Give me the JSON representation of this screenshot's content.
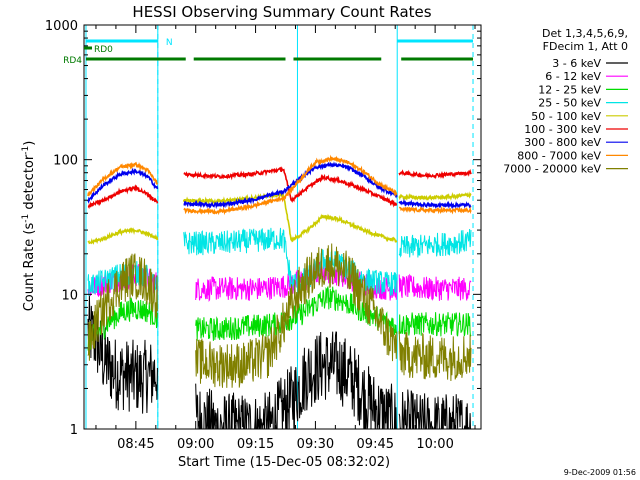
{
  "chart_data": {
    "type": "line",
    "title": "HESSI Observing Summary Count Rates",
    "xlabel": "Start Time (15-Dec-05 08:32:02)",
    "ylabel_prefix": "Count Rate (s",
    "ylabel_sup1": "-1",
    "ylabel_mid": " detector",
    "ylabel_sup2": "-1",
    "ylabel_suffix": ")",
    "y_scale": "log",
    "ylim": [
      1,
      1000
    ],
    "xlim_minutes": [
      0,
      99.5
    ],
    "x_ticks": [
      {
        "m": 13,
        "label": "08:45"
      },
      {
        "m": 28,
        "label": "09:00"
      },
      {
        "m": 43,
        "label": "09:15"
      },
      {
        "m": 58,
        "label": "09:30"
      },
      {
        "m": 73,
        "label": "09:45"
      },
      {
        "m": 88,
        "label": "10:00"
      }
    ],
    "y_ticks": [
      {
        "v": 1,
        "label": "1"
      },
      {
        "v": 10,
        "label": "10"
      },
      {
        "v": 100,
        "label": "100"
      },
      {
        "v": 1000,
        "label": "1000"
      }
    ],
    "night_markers_minutes": [
      0.5,
      18.5,
      53.5,
      78.5
    ],
    "saa_markers_minutes": [
      18.5,
      97.5
    ],
    "flags": [
      {
        "label": "N",
        "color": "#00e5ff",
        "segments": [
          [
            0.5,
            18.5
          ],
          [
            78.5,
            97.5
          ]
        ],
        "level": 1
      }
    ],
    "attenuator_flags": [
      {
        "label": "RD0",
        "color": "#007a00",
        "segments": [
          [
            -6,
            -1
          ]
        ],
        "level": 2
      },
      {
        "label": "RD4",
        "color": "#007a00",
        "segments": [
          [
            0.5,
            25.5
          ],
          [
            27.5,
            50.5
          ],
          [
            52.5,
            74.5
          ],
          [
            79.5,
            97.5
          ]
        ],
        "level": 3
      }
    ],
    "legend_header": [
      "Det 1,3,4,5,6,9,",
      "FDecim 1, Att 0"
    ],
    "series": [
      {
        "name": "3 - 6 keV",
        "color": "#000000",
        "seg1": [
          [
            1,
            5.4
          ],
          [
            3,
            4.6
          ],
          [
            5,
            3.2
          ],
          [
            8,
            2.6
          ],
          [
            11,
            2.5
          ],
          [
            14,
            2.4
          ],
          [
            17,
            2.5
          ],
          [
            18.5,
            2.7
          ]
        ],
        "seg2": [
          [
            28,
            1.2
          ],
          [
            34,
            1.0
          ],
          [
            40,
            1.0
          ],
          [
            46,
            1.0
          ],
          [
            52,
            1.6
          ],
          [
            56,
            2.6
          ],
          [
            60,
            3.0
          ],
          [
            64,
            2.9
          ],
          [
            68,
            2.2
          ],
          [
            72,
            1.5
          ],
          [
            76,
            1.2
          ],
          [
            78.5,
            1.1
          ]
        ],
        "seg3": [
          [
            79,
            1.1
          ],
          [
            84,
            1.0
          ],
          [
            90,
            1.0
          ],
          [
            97,
            1.0
          ]
        ]
      },
      {
        "name": "6 - 12 keV",
        "color": "#ff00ff",
        "seg1": [
          [
            1,
            11
          ],
          [
            5,
            12
          ],
          [
            9,
            13
          ],
          [
            13,
            14
          ],
          [
            16,
            13
          ],
          [
            18.5,
            12
          ]
        ],
        "seg2": [
          [
            28,
            11
          ],
          [
            36,
            11
          ],
          [
            44,
            11
          ],
          [
            50,
            11.5
          ],
          [
            56,
            13
          ],
          [
            60,
            15
          ],
          [
            64,
            14
          ],
          [
            70,
            12
          ],
          [
            76,
            11
          ],
          [
            78.5,
            11
          ]
        ],
        "seg3": [
          [
            79,
            11.5
          ],
          [
            86,
            11
          ],
          [
            92,
            11
          ],
          [
            97,
            11
          ]
        ]
      },
      {
        "name": "12 - 25 keV",
        "color": "#00dd00",
        "seg1": [
          [
            1,
            4.5
          ],
          [
            4,
            5.4
          ],
          [
            7,
            6.6
          ],
          [
            10,
            7.5
          ],
          [
            13,
            7.9
          ],
          [
            16,
            7.5
          ],
          [
            18.5,
            6.7
          ]
        ],
        "seg2": [
          [
            28,
            5.5
          ],
          [
            34,
            5.5
          ],
          [
            42,
            5.8
          ],
          [
            48,
            6.0
          ],
          [
            54,
            7.0
          ],
          [
            58,
            8.5
          ],
          [
            61,
            9.5
          ],
          [
            64,
            9.2
          ],
          [
            68,
            8.0
          ],
          [
            72,
            7.0
          ],
          [
            76,
            6.2
          ],
          [
            78.5,
            5.8
          ]
        ],
        "seg3": [
          [
            79,
            6
          ],
          [
            84,
            6
          ],
          [
            90,
            6
          ],
          [
            97,
            6
          ]
        ]
      },
      {
        "name": "25 - 50 keV",
        "color": "#00e5e5",
        "seg1": [
          [
            1,
            11.5
          ],
          [
            5,
            12.5
          ],
          [
            9,
            14
          ],
          [
            13,
            14.5
          ],
          [
            16,
            13.5
          ],
          [
            18.5,
            11
          ]
        ],
        "seg2": [
          [
            25,
            24
          ],
          [
            34,
            24
          ],
          [
            42,
            25
          ],
          [
            50,
            26
          ],
          [
            52,
            12
          ],
          [
            56,
            13
          ],
          [
            60,
            18
          ],
          [
            64,
            17
          ],
          [
            70,
            13
          ],
          [
            76,
            12
          ],
          [
            78.5,
            12
          ]
        ],
        "seg3": [
          [
            79,
            22
          ],
          [
            86,
            23
          ],
          [
            92,
            24
          ],
          [
            97,
            25
          ]
        ]
      },
      {
        "name": "50 - 100 keV",
        "color": "#cccc00",
        "seg1": [
          [
            1,
            24
          ],
          [
            5,
            26
          ],
          [
            9,
            29
          ],
          [
            13,
            30
          ],
          [
            16,
            28
          ],
          [
            18.5,
            26
          ]
        ],
        "seg2": [
          [
            25,
            50
          ],
          [
            34,
            49
          ],
          [
            42,
            52
          ],
          [
            50,
            55
          ],
          [
            52,
            25
          ],
          [
            56,
            30
          ],
          [
            60,
            38
          ],
          [
            64,
            36
          ],
          [
            70,
            30
          ],
          [
            76,
            26
          ],
          [
            78.5,
            25
          ]
        ],
        "seg3": [
          [
            79,
            53
          ],
          [
            86,
            52
          ],
          [
            92,
            53
          ],
          [
            97,
            55
          ]
        ]
      },
      {
        "name": "100 - 300 keV",
        "color": "#ee0000",
        "seg1": [
          [
            1,
            45
          ],
          [
            5,
            50
          ],
          [
            9,
            58
          ],
          [
            13,
            62
          ],
          [
            16,
            55
          ],
          [
            18.5,
            48
          ]
        ],
        "seg2": [
          [
            25,
            78
          ],
          [
            34,
            75
          ],
          [
            42,
            78
          ],
          [
            50,
            85
          ],
          [
            52,
            50
          ],
          [
            56,
            62
          ],
          [
            60,
            74
          ],
          [
            64,
            70
          ],
          [
            70,
            60
          ],
          [
            76,
            50
          ],
          [
            78.5,
            46
          ]
        ],
        "seg3": [
          [
            79,
            80
          ],
          [
            86,
            76
          ],
          [
            92,
            78
          ],
          [
            97,
            80
          ]
        ]
      },
      {
        "name": "300 - 800 keV",
        "color": "#0000ee",
        "seg1": [
          [
            1,
            50
          ],
          [
            5,
            65
          ],
          [
            9,
            78
          ],
          [
            13,
            82
          ],
          [
            16,
            75
          ],
          [
            18.5,
            60
          ]
        ],
        "seg2": [
          [
            25,
            47
          ],
          [
            34,
            46
          ],
          [
            42,
            50
          ],
          [
            50,
            58
          ],
          [
            54,
            72
          ],
          [
            58,
            88
          ],
          [
            62,
            92
          ],
          [
            66,
            88
          ],
          [
            70,
            76
          ],
          [
            74,
            62
          ],
          [
            78.5,
            54
          ]
        ],
        "seg3": [
          [
            79,
            48
          ],
          [
            86,
            46
          ],
          [
            92,
            46
          ],
          [
            97,
            46
          ]
        ]
      },
      {
        "name": "800 - 7000 keV",
        "color": "#ff8800",
        "seg1": [
          [
            1,
            55
          ],
          [
            5,
            72
          ],
          [
            9,
            88
          ],
          [
            13,
            92
          ],
          [
            16,
            83
          ],
          [
            18.5,
            66
          ]
        ],
        "seg2": [
          [
            25,
            42
          ],
          [
            34,
            41
          ],
          [
            42,
            45
          ],
          [
            50,
            52
          ],
          [
            54,
            70
          ],
          [
            58,
            96
          ],
          [
            62,
            102
          ],
          [
            66,
            96
          ],
          [
            70,
            82
          ],
          [
            74,
            66
          ],
          [
            78.5,
            56
          ]
        ],
        "seg3": [
          [
            79,
            43
          ],
          [
            86,
            42
          ],
          [
            92,
            42
          ],
          [
            97,
            42
          ]
        ]
      },
      {
        "name": "7000 - 20000 keV",
        "color": "#808000",
        "seg1": [
          [
            1,
            4
          ],
          [
            3,
            6
          ],
          [
            6,
            9
          ],
          [
            9,
            12
          ],
          [
            12,
            14
          ],
          [
            15,
            13
          ],
          [
            17,
            11
          ],
          [
            18.5,
            9.5
          ]
        ],
        "seg2": [
          [
            28,
            3.2
          ],
          [
            34,
            3
          ],
          [
            40,
            3
          ],
          [
            46,
            3.5
          ],
          [
            50,
            6
          ],
          [
            54,
            11
          ],
          [
            58,
            15
          ],
          [
            61,
            17
          ],
          [
            64,
            16
          ],
          [
            68,
            12
          ],
          [
            72,
            8
          ],
          [
            76,
            5
          ],
          [
            78.5,
            4
          ]
        ],
        "seg3": [
          [
            79,
            3.6
          ],
          [
            86,
            3.4
          ],
          [
            92,
            3.4
          ],
          [
            97,
            3.6
          ]
        ]
      }
    ],
    "timestamp": "9-Dec-2009 01:56"
  }
}
